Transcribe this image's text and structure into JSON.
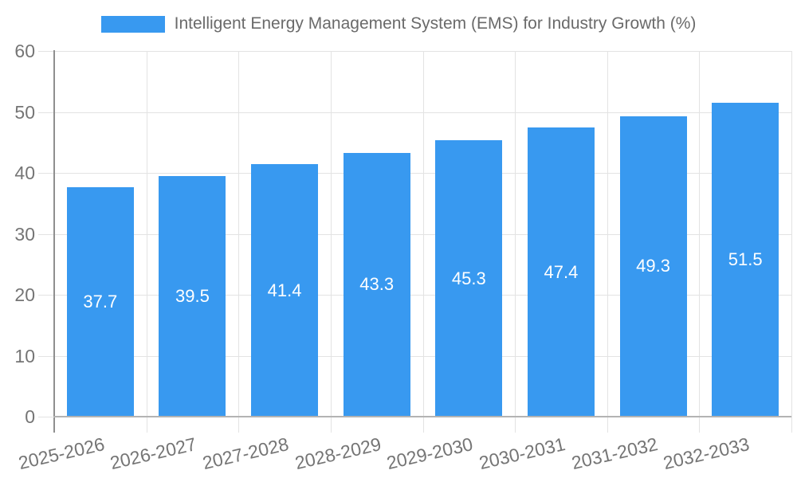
{
  "chart_data": {
    "type": "bar",
    "title": "Intelligent Energy Management System (EMS) for Industry Growth (%)",
    "legend_position": "top",
    "categories": [
      "2025-2026",
      "2026-2027",
      "2027-2028",
      "2028-2029",
      "2029-2030",
      "2030-2031",
      "2031-2032",
      "2032-2033"
    ],
    "series": [
      {
        "name": "Intelligent Energy Management System (EMS) for Industry Growth (%)",
        "values": [
          37.7,
          39.5,
          41.4,
          43.3,
          45.3,
          47.4,
          49.3,
          51.5
        ]
      }
    ],
    "value_labels": [
      "37.7",
      "39.5",
      "41.4",
      "43.3",
      "45.3",
      "47.4",
      "49.3",
      "51.5"
    ],
    "xlabel": "",
    "ylabel": "",
    "ylim": [
      0,
      60
    ],
    "yticks": [
      "0",
      "10",
      "20",
      "30",
      "40",
      "50",
      "60"
    ],
    "grid": true,
    "colors": {
      "bar": "#3899F0",
      "value_label": "#FFFFFF",
      "grid": "#E3E3E3",
      "y_axis": "#8F8F8F",
      "x_axis": "#B3B3B3",
      "tick_label": "#757575",
      "legend_text": "#6A6A6A"
    }
  }
}
